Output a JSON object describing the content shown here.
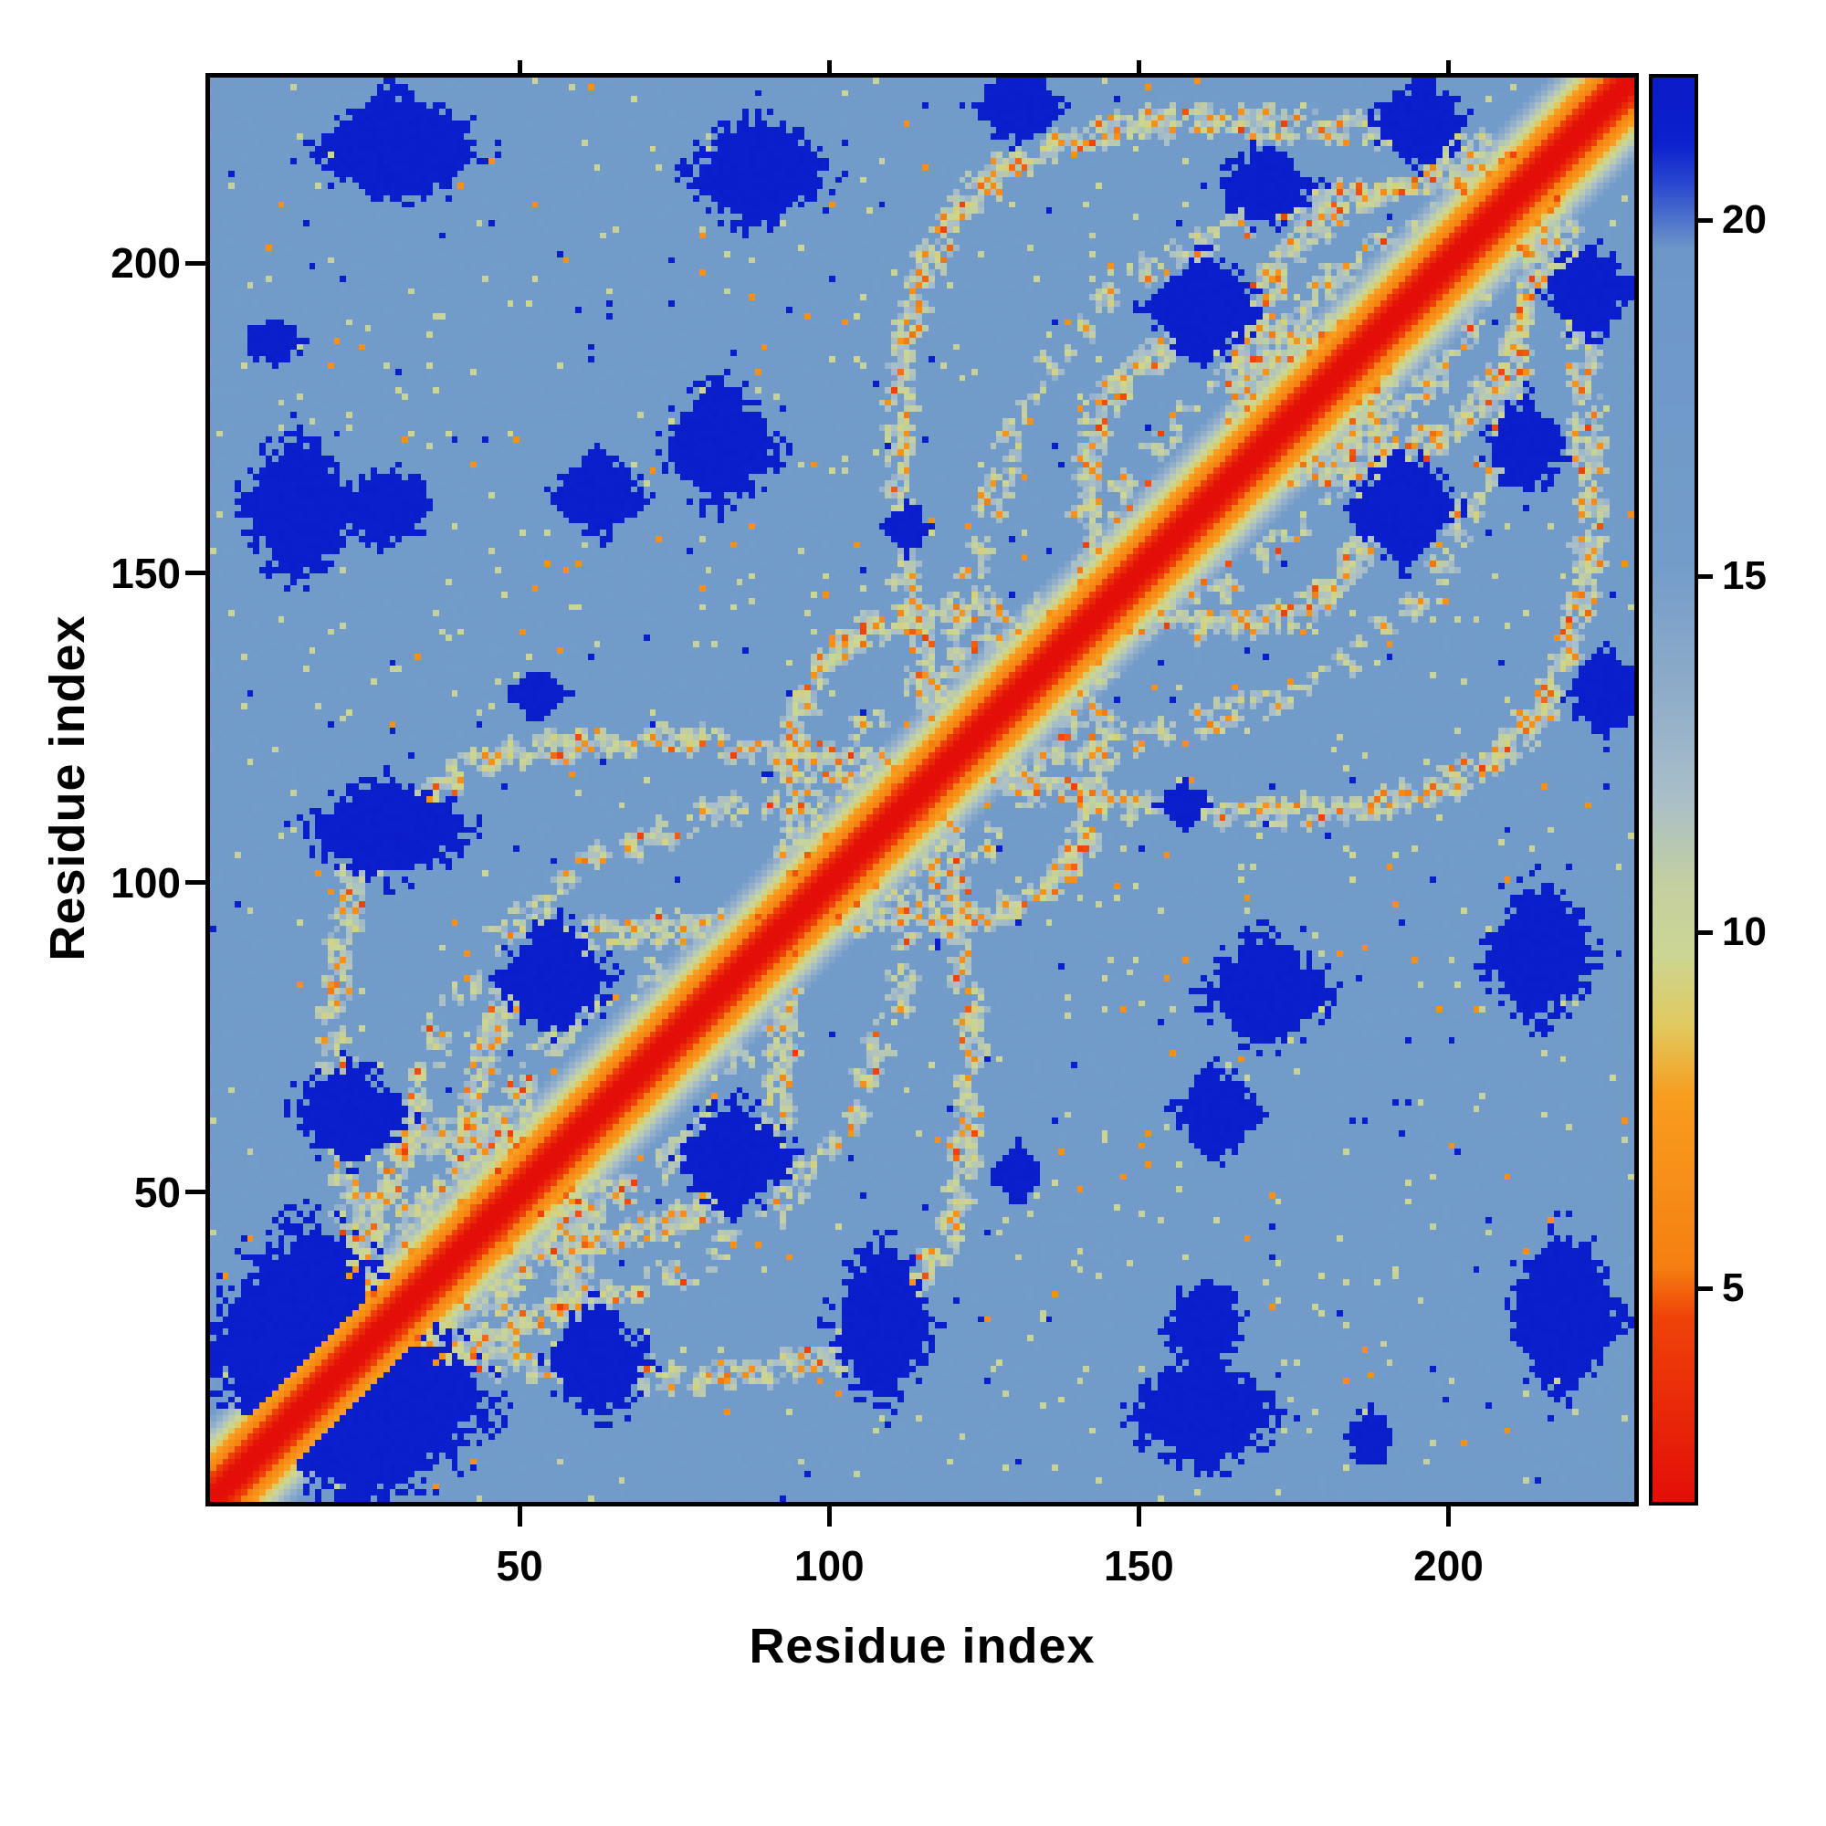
{
  "figure": {
    "background": "#ffffff",
    "frame_color": "#000000"
  },
  "chart_data": {
    "type": "heatmap",
    "title": "",
    "xlabel": "Residue index",
    "ylabel": "Residue index",
    "x_range": [
      0,
      230
    ],
    "y_range": [
      0,
      230
    ],
    "x_ticks": [
      50,
      100,
      150,
      200
    ],
    "y_ticks": [
      50,
      100,
      150,
      200
    ],
    "grid": false,
    "legend": "none",
    "colorbar": {
      "range": [
        2,
        22
      ],
      "ticks": [
        5,
        10,
        15,
        20
      ],
      "orientation": "vertical",
      "position": "right"
    },
    "colormap": {
      "name": "distance-map (red=near, steel-blue=mid, dark-blue=far)",
      "stops": [
        {
          "v": 2.0,
          "c": "#e30e08"
        },
        {
          "v": 4.6,
          "c": "#ef4309"
        },
        {
          "v": 5.3,
          "c": "#f57f10"
        },
        {
          "v": 7.7,
          "c": "#f89d1f"
        },
        {
          "v": 8.7,
          "c": "#e0c95f"
        },
        {
          "v": 9.7,
          "c": "#ccd693"
        },
        {
          "v": 10.7,
          "c": "#c3cfa1"
        },
        {
          "v": 11.9,
          "c": "#a9bfc9"
        },
        {
          "v": 13.3,
          "c": "#90adc9"
        },
        {
          "v": 15.2,
          "c": "#739cca"
        },
        {
          "v": 19.6,
          "c": "#6d97c8"
        },
        {
          "v": 20.5,
          "c": "#2b49cf"
        },
        {
          "v": 21.1,
          "c": "#0c20ce"
        },
        {
          "v": 22.0,
          "c": "#0a1bc7"
        }
      ]
    },
    "description": "Symmetric 230x230 residue-residue distance map: bright red main diagonal flanked by orange and pale-green bands, lens-shaped speckled contact ridges (orange/yellow-green checker dots) looping away from the diagonal and re-crossing it near residues 25, 117 and 216, a flat light steel-blue mid-range background, and irregular dark-blue patches marking the largest distances.",
    "synthesis": {
      "n": 230,
      "seed": 13,
      "background": 16,
      "diag_slope": 1.1,
      "blob_value": 21.4,
      "loops": [
        {
          "a": 25,
          "b": 117,
          "amp": 40
        },
        {
          "a": 117,
          "b": 216,
          "amp": 44
        },
        {
          "a": 42,
          "b": 92,
          "amp": 17
        },
        {
          "a": 95,
          "b": 142,
          "amp": 18
        },
        {
          "a": 142,
          "b": 188,
          "amp": 17
        },
        {
          "a": 25,
          "b": 60,
          "amp": 12
        },
        {
          "a": 165,
          "b": 215,
          "amp": 14
        }
      ],
      "blobs": [
        [
          15,
          25,
          16,
          20
        ],
        [
          22,
          62,
          9,
          8
        ],
        [
          55,
          84,
          9,
          9
        ],
        [
          28,
          108,
          13,
          8
        ],
        [
          14,
          160,
          9,
          12
        ],
        [
          30,
          218,
          13,
          9
        ],
        [
          62,
          162,
          7,
          7
        ],
        [
          82,
          170,
          9,
          10
        ],
        [
          88,
          214,
          11,
          9
        ],
        [
          52,
          130,
          5,
          4
        ],
        [
          112,
          157,
          4,
          4
        ],
        [
          160,
          192,
          9,
          8
        ],
        [
          170,
          212,
          8,
          6
        ],
        [
          195,
          222,
          7,
          7
        ],
        [
          28,
          160,
          8,
          6
        ],
        [
          130,
          225,
          7,
          6
        ],
        [
          10,
          187,
          5,
          4
        ]
      ],
      "speckle": {
        "green_p": 0.45,
        "orange_p": 0.27,
        "red_p": 0.08,
        "halo_p": 0.5,
        "field_green_p": 0.012,
        "field_orange_p": 0.004,
        "field_blue_p": 0.004
      }
    }
  }
}
